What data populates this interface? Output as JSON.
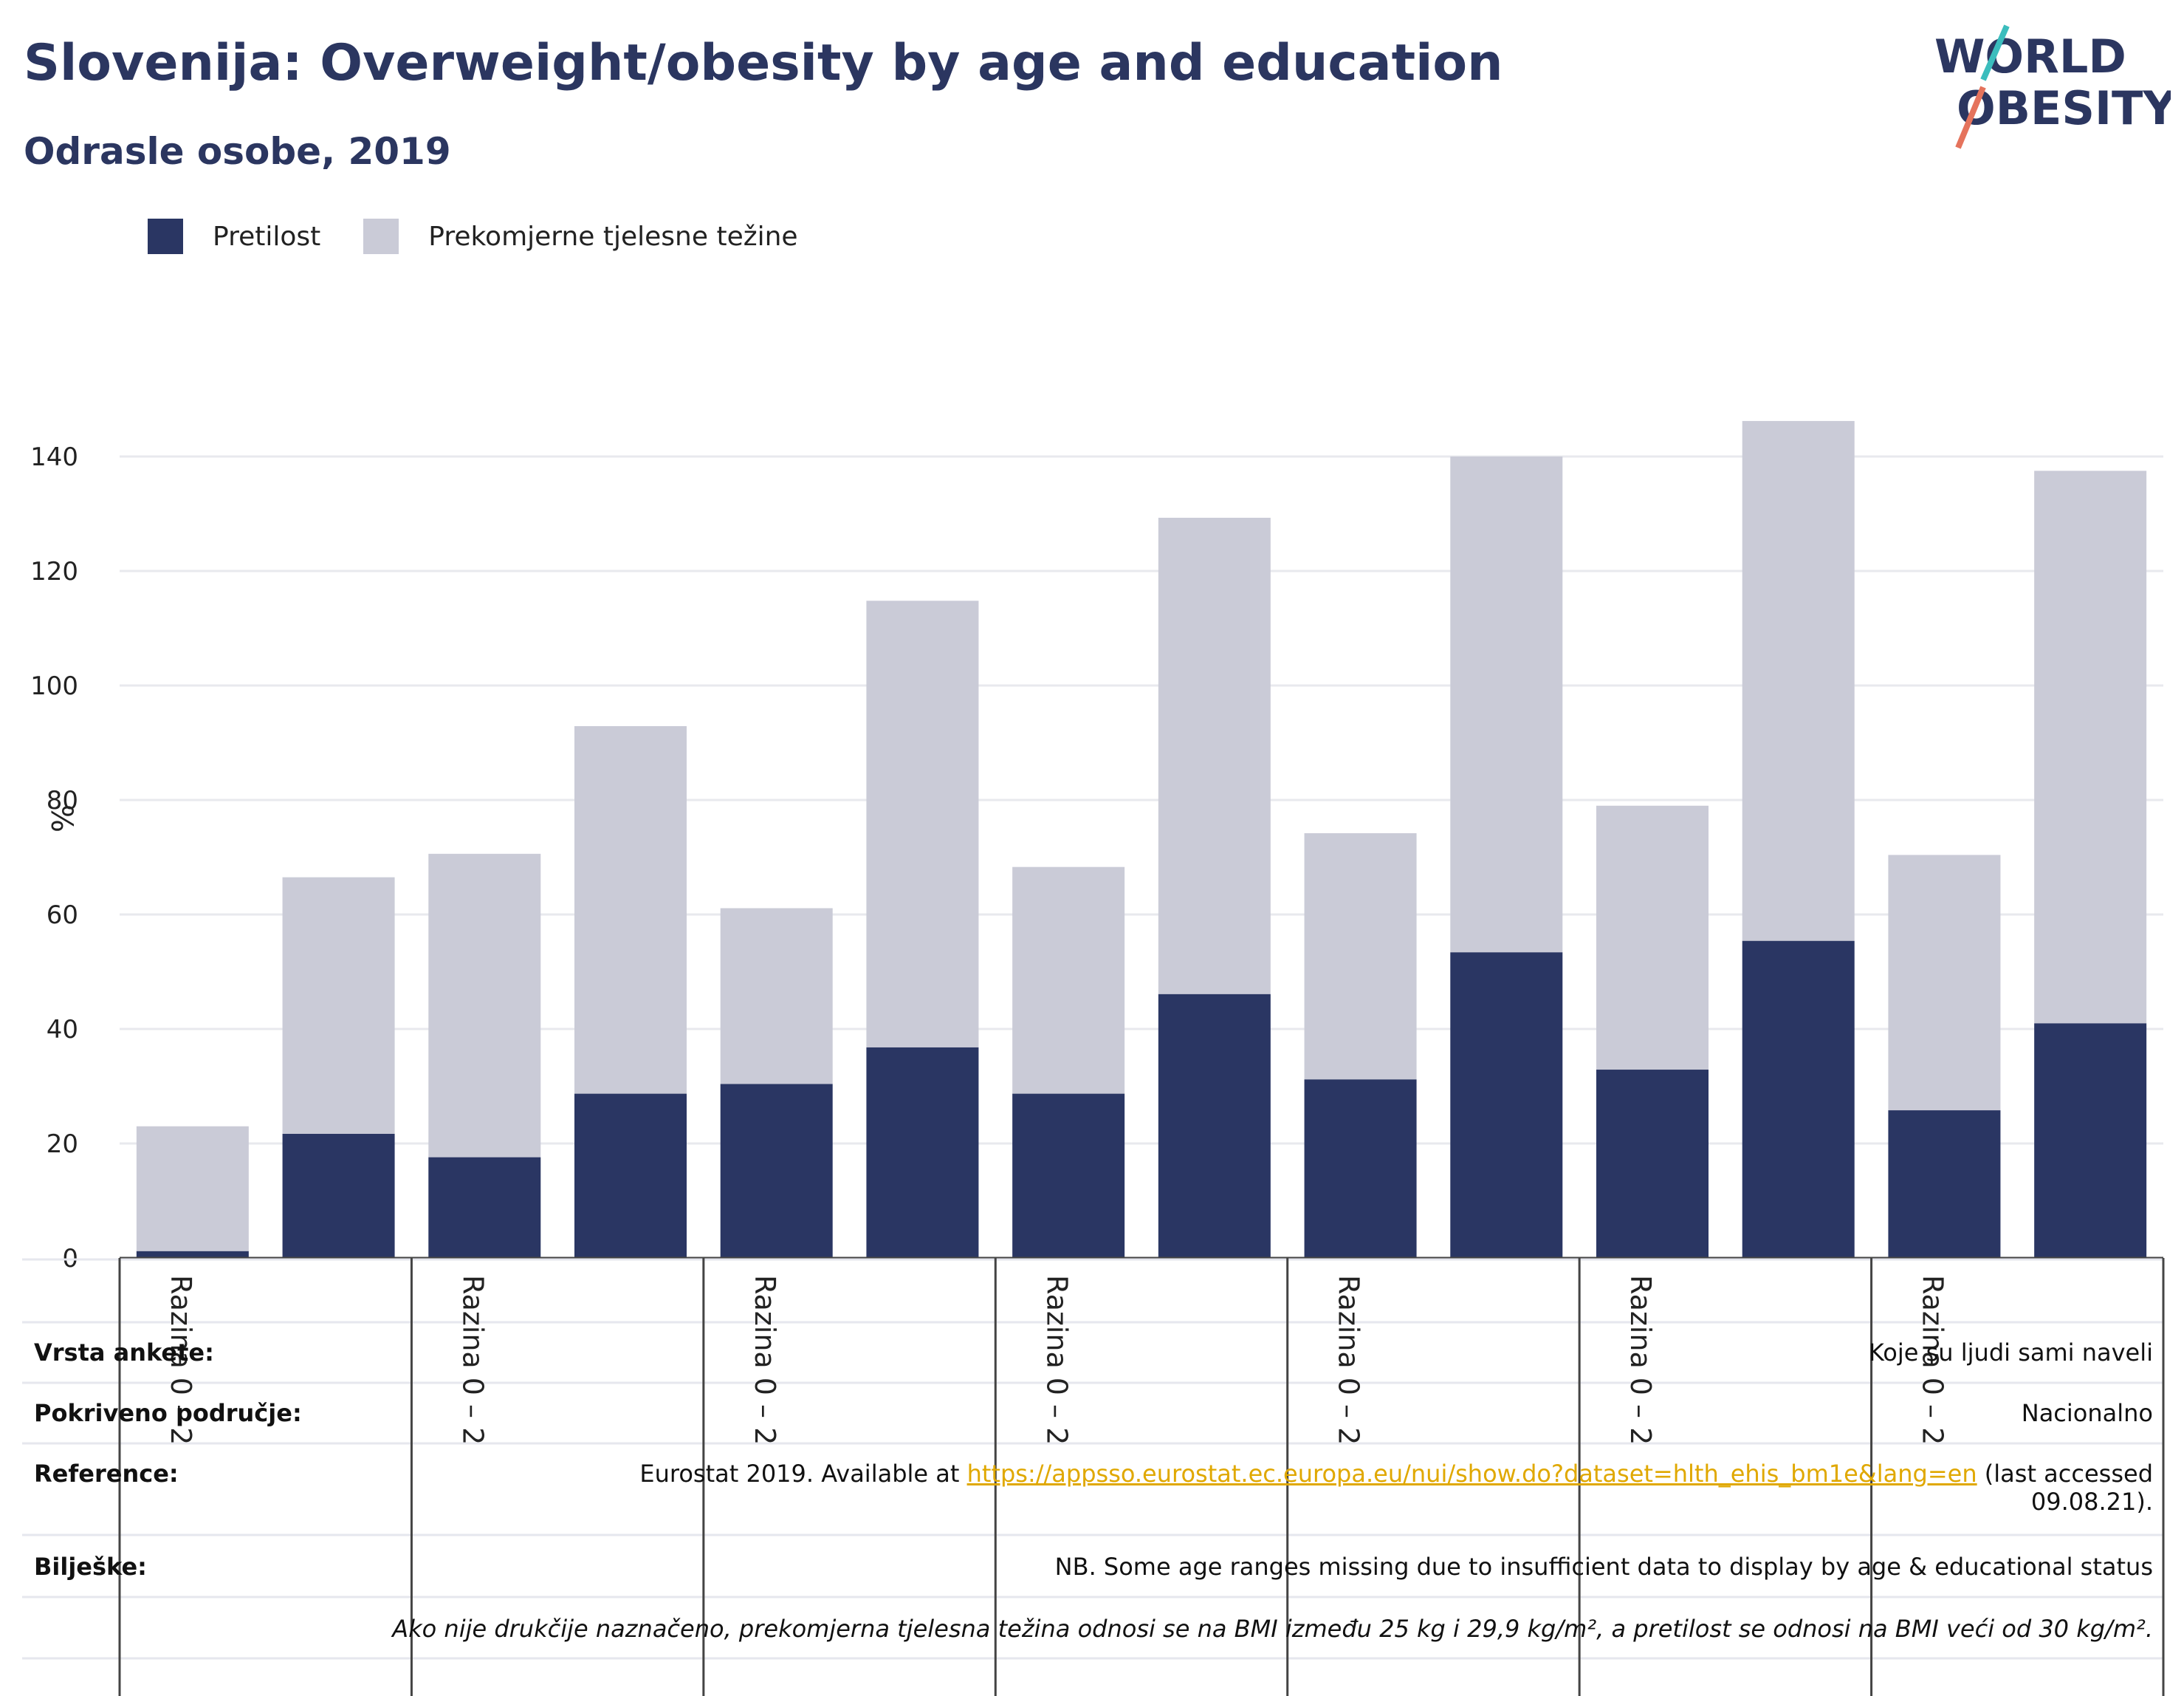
{
  "header": {
    "title": "Slovenija: Overweight/obesity by age and education",
    "subtitle": "Odrasle osobe, 2019"
  },
  "logo": {
    "line1": "WORLD",
    "line2": "OBESITY"
  },
  "legend": {
    "items": [
      {
        "label": "Pretilost",
        "color": "#2a3663"
      },
      {
        "label": "Prekomjerne tjelesne težine",
        "color": "#cacbd7"
      }
    ]
  },
  "chart_data": {
    "type": "bar",
    "stacked": true,
    "ylabel": "%",
    "ylim": [
      0,
      150
    ],
    "yticks": [
      0,
      20,
      40,
      60,
      80,
      100,
      120,
      140
    ],
    "grid": true,
    "legend_position": "top-left",
    "categories": [
      "",
      "",
      "",
      "",
      "",
      "",
      "",
      "",
      "",
      "",
      "",
      "",
      "",
      ""
    ],
    "group_labels": [
      "Razina 0 – 2",
      "Razina 0 – 2",
      "Razina 0 – 2",
      "Razina 0 – 2",
      "Razina 0 – 2",
      "Razina 0 – 2",
      "Razina 0 – 2"
    ],
    "series": [
      {
        "name": "Pretilost",
        "color": "#2a3663",
        "values": [
          1.2,
          21.7,
          17.6,
          28.7,
          30.4,
          36.8,
          28.7,
          46.1,
          31.2,
          53.4,
          32.9,
          55.4,
          25.8,
          41.0
        ]
      },
      {
        "name": "Prekomjerne tjelesne težine",
        "color": "#cacbd7",
        "values": [
          21.8,
          44.8,
          53.0,
          64.2,
          30.7,
          78.0,
          39.6,
          83.2,
          43.0,
          86.6,
          46.1,
          90.8,
          44.6,
          96.5
        ]
      }
    ]
  },
  "info": {
    "survey_label": "Vrsta ankete:",
    "survey_value": "Koje su ljudi sami naveli",
    "coverage_label": "Pokriveno područje:",
    "coverage_value": "Nacionalno",
    "reference_label": "Reference:",
    "reference_prefix": "Eurostat 2019. Available at ",
    "reference_link": "https://appsso.eurostat.ec.europa.eu/nui/show.do?dataset=hlth_ehis_bm1e&lang=en",
    "reference_suffix": " (last accessed",
    "reference_date": "09.08.21).",
    "notes_label": "Bilješke:",
    "notes_value": "NB. Some age ranges missing due to insufficient data to display by age & educational status",
    "footnote": "Ako nije drukčije naznačeno, prekomjerna tjelesna težina odnosi se na BMI između 25 kg i 29,9 kg/m², a pretilost se odnosi na BMI veći od 30 kg/m²."
  }
}
